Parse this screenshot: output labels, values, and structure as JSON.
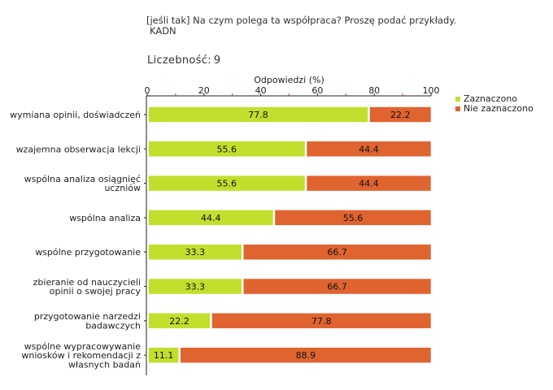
{
  "header": {
    "question_line1": "[jeśli tak] Na czym polega ta współpraca? Proszę podać przykłady.",
    "question_line2": "KADN",
    "count_label": "Liczebność:",
    "count_value": "9"
  },
  "chart_data": {
    "type": "bar",
    "orientation": "horizontal",
    "stacked": true,
    "title": "[jeśli tak] Na czym polega ta współpraca? Proszę podać przykłady.",
    "xlabel": "Odpowiedzi (%)",
    "ylabel": "",
    "xlim": [
      0,
      100
    ],
    "xticks": [
      0,
      20,
      40,
      60,
      80,
      100
    ],
    "legend_position": "top-right",
    "categories": [
      [
        "wymiana opinii, doświadczeń"
      ],
      [
        "wzajemna obserwacja lekcji"
      ],
      [
        "wspólna analiza osiągnięć",
        "uczniów"
      ],
      [
        "wspólna analiza"
      ],
      [
        "wspólne przygotowanie"
      ],
      [
        "zbieranie od nauczycieli",
        "opinii o swojej pracy"
      ],
      [
        "przygotowanie narzedzi",
        "badawczych"
      ],
      [
        "wspólne wypracowywanie",
        "wniosków i rekomendacji z",
        "własnych badań"
      ]
    ],
    "series": [
      {
        "name": "Zaznaczono",
        "color": "#c3df2e",
        "values": [
          77.8,
          55.6,
          55.6,
          44.4,
          33.3,
          33.3,
          22.2,
          11.1
        ]
      },
      {
        "name": "Nie zaznaczono",
        "color": "#e06430",
        "values": [
          22.2,
          44.4,
          44.4,
          55.6,
          66.7,
          66.7,
          77.8,
          88.9
        ]
      }
    ]
  }
}
